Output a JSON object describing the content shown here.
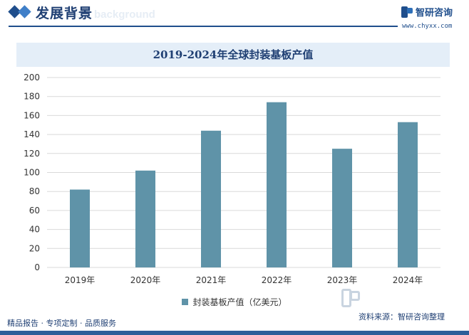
{
  "header": {
    "title": "发展背景",
    "ghost_text": "ment background"
  },
  "brand": {
    "name": "智研咨询",
    "url": "www.chyxx.com"
  },
  "chart_data": {
    "type": "bar",
    "title": "2019-2024年全球封装基板产值",
    "categories": [
      "2019年",
      "2020年",
      "2021年",
      "2022年",
      "2023年",
      "2024年"
    ],
    "series": [
      {
        "name": "封装基板产值（亿美元）",
        "values": [
          82,
          102,
          144,
          174,
          125,
          153
        ],
        "color": "#5f93a8"
      }
    ],
    "ylim": [
      0,
      200
    ],
    "yticks": [
      0,
      20,
      40,
      60,
      80,
      100,
      120,
      140,
      160,
      180,
      200
    ],
    "grid": true,
    "legend_position": "bottom"
  },
  "footer": {
    "left_text": "精品报告 · 专项定制 · 品质服务",
    "source_text": "资料来源：智研咨询整理"
  }
}
